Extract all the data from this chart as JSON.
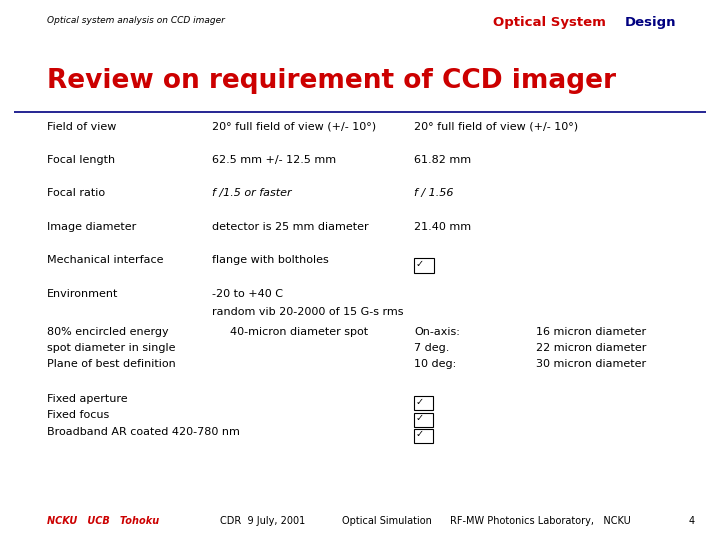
{
  "bg_color": "#ffffff",
  "header_subtitle": "Optical system analysis on CCD imager",
  "header_title_green": "Optical System ",
  "header_title_blue": "Design",
  "slide_title": "Review on requirement of CCD imager",
  "slide_title_color": "#cc0000",
  "underline_color": "#000080",
  "rows": [
    {
      "label": "Field of view",
      "req": "20° full field of view (+/- 10°)",
      "actual": "20° full field of view (+/- 10°)",
      "check": false
    },
    {
      "label": "Focal length",
      "req": "62.5 mm +/- 12.5 mm",
      "actual": "61.82 mm",
      "check": false
    },
    {
      "label": "Focal ratio",
      "req": "f /1.5 or faster",
      "req_italic": true,
      "actual": "f / 1.56",
      "actual_italic": true,
      "check": false
    },
    {
      "label": "Image diameter",
      "req": "detector is 25 mm diameter",
      "actual": "21.40 mm",
      "check": false
    },
    {
      "label": "Mechanical interface",
      "req": "flange with boltholes",
      "actual": "☑",
      "check": true
    },
    {
      "label": "Environment",
      "req_line1": "-20 to +40 C",
      "req_line2": "random vib 20-2000 of 15 G-s rms",
      "actual": "",
      "check": false
    }
  ],
  "section2_label_lines": [
    "80% encircled energy",
    "spot diameter in single",
    "Plane of best definition"
  ],
  "section2_req": "40-micron diameter spot",
  "section2_left": [
    "On-axis:",
    "7 deg.",
    "10 deg:"
  ],
  "section2_right": [
    "16 micron diameter",
    "22 micron diameter",
    "30 micron diameter"
  ],
  "section3_items": [
    "Fixed aperture",
    "Fixed focus",
    "Broadband AR coated 420-780 nm"
  ],
  "footer_left": "NCKU   UCB   Tohoku",
  "footer_c1": "CDR  9 July, 2001",
  "footer_c2": "Optical Simulation",
  "footer_right": "RF-MW Photonics Laboratory,   NCKU",
  "footer_page": "4",
  "col1": 0.065,
  "col2": 0.295,
  "col3": 0.575,
  "col4": 0.745
}
